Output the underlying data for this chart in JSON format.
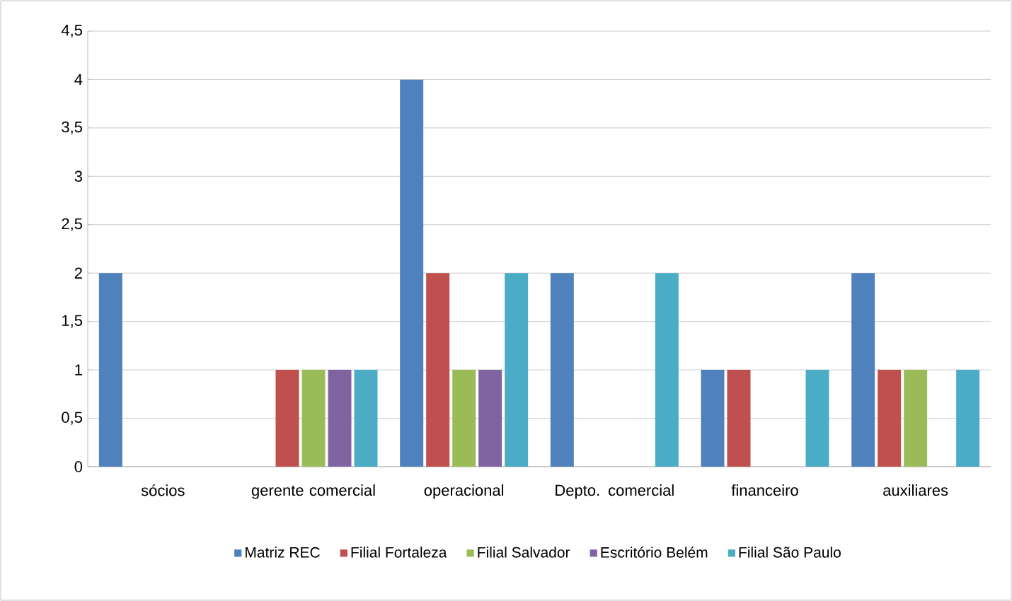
{
  "chart_data": {
    "type": "bar",
    "categories": [
      "sócios",
      "gerente comercial",
      "operacional",
      "Depto. comercial",
      "financeiro",
      "auxiliares"
    ],
    "series": [
      {
        "name": "Matriz REC",
        "color": "#4f81bd",
        "values": [
          2,
          0,
          4,
          2,
          1,
          2
        ]
      },
      {
        "name": "Filial Fortaleza",
        "color": "#c0504d",
        "values": [
          0,
          1,
          2,
          0,
          1,
          1
        ]
      },
      {
        "name": "Filial Salvador",
        "color": "#9bbb59",
        "values": [
          0,
          1,
          1,
          0,
          0,
          1
        ]
      },
      {
        "name": "Escritório Belém",
        "color": "#8064a2",
        "values": [
          0,
          1,
          1,
          0,
          0,
          0
        ]
      },
      {
        "name": "Filial São Paulo",
        "color": "#4bacc6",
        "values": [
          0,
          1,
          2,
          2,
          1,
          1
        ]
      }
    ],
    "ylim": [
      0,
      4.5
    ],
    "yticks": [
      0,
      {
        "value": 0.5,
        "label": "0,5"
      },
      1,
      {
        "value": 1.5,
        "label": "1,5"
      },
      2,
      {
        "value": 2.5,
        "label": "2,5"
      },
      3,
      {
        "value": 3.5,
        "label": "3,5"
      },
      4,
      {
        "value": 4.5,
        "label": "4,5"
      }
    ],
    "grid": "y",
    "legend": "bottom"
  }
}
